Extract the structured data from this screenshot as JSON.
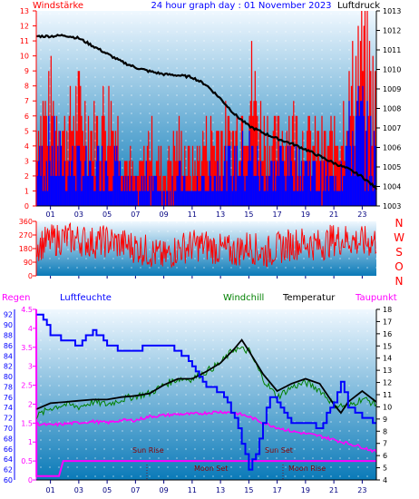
{
  "header": {
    "left_label": "Windstärke",
    "title": "24 hour graph day : 01 November 2023",
    "right_label": "Luftdruck"
  },
  "wind_direction_labels": [
    "N",
    "W",
    "S",
    "O",
    "N"
  ],
  "bottom_header": {
    "regen": "Regen",
    "luftfeuchte": "Luftfeuchte",
    "windchill": "Windchill",
    "temperatur": "Temperatur",
    "taupunkt": "Taupunkt"
  },
  "annotations": {
    "sun_rise": "Sun Rise",
    "sun_set": "Sun Set",
    "moon_set": "Moon Set",
    "moon_rise": "Moon Rise"
  },
  "colors": {
    "wind": "#ff0000",
    "gust": "#0000ff",
    "pressure": "#000000",
    "humidity": "#0000ff",
    "windchill": "#008000",
    "temperature": "#000000",
    "dewpoint": "#ff00ff",
    "rain": "#ff00ff",
    "bg_top": "#f0f8ff",
    "bg_bottom": "#0a7ab8"
  },
  "chart_data": [
    {
      "type": "line",
      "title": "24 hour graph day : 01 November 2023",
      "x_ticks": [
        "01",
        "03",
        "05",
        "07",
        "09",
        "11",
        "13",
        "15",
        "17",
        "19",
        "21",
        "23"
      ],
      "y_left": {
        "label": "Windstärke",
        "ticks": [
          0,
          1,
          2,
          3,
          4,
          5,
          6,
          7,
          8,
          9,
          10,
          11,
          12,
          13
        ],
        "range": [
          0,
          13
        ]
      },
      "y_right": {
        "label": "Luftdruck",
        "ticks": [
          1003,
          1004,
          1005,
          1006,
          1007,
          1008,
          1009,
          1010,
          1011,
          1012,
          1013
        ],
        "range": [
          1003,
          1013
        ]
      },
      "series": [
        {
          "name": "Luftdruck",
          "axis": "right",
          "points": [
            [
              0,
              1011.7
            ],
            [
              1,
              1011.7
            ],
            [
              2,
              1011.75
            ],
            [
              3,
              1011.6
            ],
            [
              4,
              1011.2
            ],
            [
              5,
              1010.8
            ],
            [
              6,
              1010.4
            ],
            [
              7,
              1010.1
            ],
            [
              8,
              1009.9
            ],
            [
              9,
              1009.75
            ],
            [
              10,
              1009.7
            ],
            [
              11,
              1009.6
            ],
            [
              12,
              1009.2
            ],
            [
              13,
              1008.5
            ],
            [
              14,
              1007.7
            ],
            [
              15,
              1007.1
            ],
            [
              16,
              1006.75
            ],
            [
              17,
              1006.45
            ],
            [
              18,
              1006.2
            ],
            [
              19,
              1005.9
            ],
            [
              20,
              1005.55
            ],
            [
              21,
              1005.2
            ],
            [
              22,
              1004.9
            ],
            [
              23,
              1004.5
            ],
            [
              24,
              1003.9
            ]
          ]
        },
        {
          "name": "Windstärke",
          "axis": "left",
          "points": [
            [
              0,
              3
            ],
            [
              1,
              4
            ],
            [
              2,
              3
            ],
            [
              3,
              3
            ],
            [
              4,
              2
            ],
            [
              5,
              4
            ],
            [
              6,
              2
            ],
            [
              7,
              1
            ],
            [
              8,
              2
            ],
            [
              9,
              1
            ],
            [
              10,
              2
            ],
            [
              11,
              1
            ],
            [
              12,
              2
            ],
            [
              13,
              3
            ],
            [
              14,
              3
            ],
            [
              15,
              4
            ],
            [
              16,
              2
            ],
            [
              17,
              3
            ],
            [
              18,
              3
            ],
            [
              19,
              3
            ],
            [
              20,
              2
            ],
            [
              21,
              2
            ],
            [
              22,
              5
            ],
            [
              23,
              6
            ],
            [
              24,
              3
            ]
          ]
        },
        {
          "name": "Böen",
          "axis": "left",
          "points": [
            [
              0,
              6
            ],
            [
              1,
              8
            ],
            [
              2,
              6
            ],
            [
              3,
              8
            ],
            [
              4,
              6
            ],
            [
              5,
              8
            ],
            [
              6,
              5
            ],
            [
              7,
              2
            ],
            [
              8,
              5
            ],
            [
              9,
              3
            ],
            [
              10,
              5
            ],
            [
              11,
              3
            ],
            [
              12,
              5
            ],
            [
              13,
              6
            ],
            [
              14,
              5
            ],
            [
              15,
              10
            ],
            [
              16,
              6
            ],
            [
              17,
              5
            ],
            [
              18,
              7
            ],
            [
              19,
              5
            ],
            [
              20,
              5
            ],
            [
              21,
              5
            ],
            [
              22,
              8
            ],
            [
              23,
              13
            ],
            [
              24,
              8
            ]
          ]
        }
      ]
    },
    {
      "type": "line",
      "x_ticks": [
        "01",
        "03",
        "05",
        "07",
        "09",
        "11",
        "13",
        "15",
        "17",
        "19",
        "21",
        "23"
      ],
      "y_left": {
        "ticks": [
          0,
          90,
          180,
          270,
          360
        ],
        "range": [
          0,
          360
        ]
      },
      "y_right": {
        "ticks": [
          "N",
          "W",
          "S",
          "O",
          "N"
        ]
      },
      "series": [
        {
          "name": "Windrichtung",
          "points": [
            [
              0,
              200
            ],
            [
              1,
              230
            ],
            [
              2,
              250
            ],
            [
              3,
              240
            ],
            [
              4,
              220
            ],
            [
              5,
              230
            ],
            [
              6,
              210
            ],
            [
              7,
              190
            ],
            [
              8,
              160
            ],
            [
              9,
              120
            ],
            [
              10,
              180
            ],
            [
              11,
              200
            ],
            [
              12,
              200
            ],
            [
              13,
              170
            ],
            [
              14,
              160
            ],
            [
              15,
              200
            ],
            [
              16,
              150
            ],
            [
              17,
              180
            ],
            [
              18,
              210
            ],
            [
              19,
              220
            ],
            [
              20,
              200
            ],
            [
              21,
              240
            ],
            [
              22,
              240
            ],
            [
              23,
              220
            ],
            [
              24,
              230
            ]
          ]
        }
      ]
    },
    {
      "type": "line",
      "x_ticks": [
        "01",
        "03",
        "05",
        "07",
        "09",
        "11",
        "13",
        "15",
        "17",
        "19",
        "21",
        "23"
      ],
      "y_humidity": {
        "label": "Luftfeuchte",
        "ticks": [
          60,
          62,
          64,
          66,
          68,
          70,
          72,
          74,
          76,
          78,
          80,
          82,
          84,
          86,
          88,
          90,
          92
        ],
        "range": [
          60,
          93
        ]
      },
      "y_rain": {
        "label": "Regen",
        "ticks": [
          0,
          0.5,
          1,
          1.5,
          2,
          2.5,
          3,
          3.5,
          4,
          4.5
        ],
        "range": [
          0,
          4.5
        ]
      },
      "y_temp": {
        "ticks": [
          4,
          5,
          6,
          7,
          8,
          9,
          10,
          11,
          12,
          13,
          14,
          15,
          16,
          17,
          18
        ],
        "range": [
          4,
          18
        ]
      },
      "series": [
        {
          "name": "Luftfeuchte",
          "axis": "humidity",
          "points": [
            [
              0,
              92
            ],
            [
              0.5,
              91
            ],
            [
              1,
              88
            ],
            [
              2,
              87
            ],
            [
              3,
              86
            ],
            [
              4,
              89
            ],
            [
              5,
              86
            ],
            [
              6,
              85
            ],
            [
              7,
              85
            ],
            [
              8,
              86
            ],
            [
              9,
              86
            ],
            [
              10,
              85
            ],
            [
              11,
              82
            ],
            [
              12,
              78
            ],
            [
              13,
              77
            ],
            [
              14,
              72
            ],
            [
              14.5,
              67
            ],
            [
              15,
              62
            ],
            [
              15.5,
              65
            ],
            [
              16,
              71
            ],
            [
              16.5,
              76
            ],
            [
              17,
              75
            ],
            [
              18,
              71
            ],
            [
              19,
              71
            ],
            [
              20,
              70
            ],
            [
              21,
              75
            ],
            [
              21.5,
              79
            ],
            [
              22,
              74
            ],
            [
              23,
              72
            ],
            [
              24,
              71
            ]
          ]
        },
        {
          "name": "Temperatur",
          "axis": "temp",
          "points": [
            [
              0,
              9.8
            ],
            [
              1,
              10.3
            ],
            [
              2,
              10.4
            ],
            [
              3,
              10.5
            ],
            [
              4,
              10.6
            ],
            [
              5,
              10.6
            ],
            [
              6,
              10.8
            ],
            [
              7,
              10.9
            ],
            [
              8,
              11.1
            ],
            [
              9,
              11.8
            ],
            [
              10,
              12.3
            ],
            [
              11,
              12.3
            ],
            [
              12,
              12.9
            ],
            [
              13,
              13.6
            ],
            [
              14,
              14.8
            ],
            [
              14.5,
              15.5
            ],
            [
              15,
              14.6
            ],
            [
              16,
              12.7
            ],
            [
              17,
              11.3
            ],
            [
              18,
              11.9
            ],
            [
              19,
              12.3
            ],
            [
              20,
              11.9
            ],
            [
              21,
              10.2
            ],
            [
              21.5,
              9.5
            ],
            [
              22,
              10.4
            ],
            [
              23,
              11.3
            ],
            [
              24,
              10.4
            ]
          ]
        },
        {
          "name": "Windchill",
          "axis": "temp",
          "points": [
            [
              0,
              9.2
            ],
            [
              1,
              9.9
            ],
            [
              2,
              10.2
            ],
            [
              3,
              10.0
            ],
            [
              4,
              10.4
            ],
            [
              5,
              10.2
            ],
            [
              6,
              10.6
            ],
            [
              7,
              10.9
            ],
            [
              8,
              11.1
            ],
            [
              9,
              11.8
            ],
            [
              10,
              12.3
            ],
            [
              11,
              12.3
            ],
            [
              12,
              12.9
            ],
            [
              13,
              13.6
            ],
            [
              14,
              14.8
            ],
            [
              15,
              14.6
            ],
            [
              16,
              12.3
            ],
            [
              17,
              10.8
            ],
            [
              18,
              11.6
            ],
            [
              19,
              12.0
            ],
            [
              20,
              11.4
            ],
            [
              21,
              10.2
            ],
            [
              22,
              10.0
            ],
            [
              23,
              10.7
            ],
            [
              24,
              10.2
            ]
          ]
        },
        {
          "name": "Taupunkt",
          "axis": "temp",
          "points": [
            [
              0,
              8.6
            ],
            [
              1,
              8.5
            ],
            [
              2,
              8.6
            ],
            [
              3,
              8.7
            ],
            [
              4,
              8.8
            ],
            [
              5,
              8.7
            ],
            [
              6,
              8.9
            ],
            [
              7,
              8.9
            ],
            [
              8,
              9.2
            ],
            [
              9,
              9.3
            ],
            [
              10,
              9.4
            ],
            [
              11,
              9.4
            ],
            [
              12,
              9.5
            ],
            [
              13,
              9.6
            ],
            [
              14,
              9.5
            ],
            [
              15,
              9.2
            ],
            [
              16,
              8.7
            ],
            [
              17,
              8.3
            ],
            [
              18,
              8.0
            ],
            [
              19,
              7.8
            ],
            [
              20,
              7.6
            ],
            [
              21,
              7.3
            ],
            [
              22,
              7.0
            ],
            [
              23,
              6.7
            ],
            [
              24,
              6.3
            ]
          ]
        },
        {
          "name": "Regen",
          "axis": "rain",
          "points": [
            [
              0,
              4.5
            ],
            [
              0.01,
              0.1
            ],
            [
              1,
              0.1
            ],
            [
              1.6,
              0.1
            ],
            [
              1.9,
              0.5
            ],
            [
              3,
              0.5
            ],
            [
              6,
              0.5
            ],
            [
              9,
              0.5
            ],
            [
              12,
              0.5
            ],
            [
              15,
              0.5
            ],
            [
              18,
              0.5
            ],
            [
              21,
              0.5
            ],
            [
              24,
              0.5
            ]
          ]
        }
      ]
    }
  ]
}
